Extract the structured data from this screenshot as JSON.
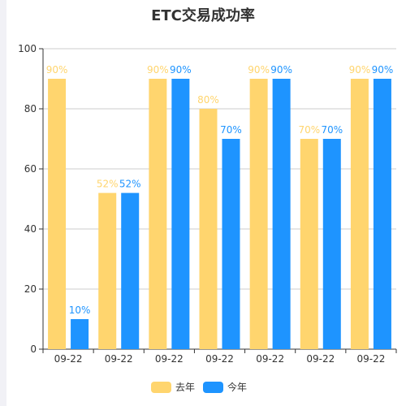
{
  "chart_data": {
    "type": "bar",
    "title": "ETC交易成功率",
    "xlabel": "",
    "ylabel": "",
    "ylim": [
      0,
      100
    ],
    "yticks": [
      0,
      20,
      40,
      60,
      80,
      100
    ],
    "grid": true,
    "legend_position": "bottom-center",
    "categories": [
      "09-22",
      "09-22",
      "09-22",
      "09-22",
      "09-22",
      "09-22",
      "09-22"
    ],
    "series": [
      {
        "name": "去年",
        "color": "#ffd56e",
        "values": [
          90,
          52,
          90,
          80,
          90,
          70,
          90
        ],
        "labels": [
          "90%",
          "52%",
          "90%",
          "80%",
          "90%",
          "70%",
          "90%"
        ]
      },
      {
        "name": "今年",
        "color": "#1e94ff",
        "values": [
          10,
          52,
          90,
          70,
          90,
          70,
          90
        ],
        "labels": [
          "10%",
          "52%",
          "90%",
          "70%",
          "90%",
          "70%",
          "90%"
        ]
      }
    ]
  }
}
